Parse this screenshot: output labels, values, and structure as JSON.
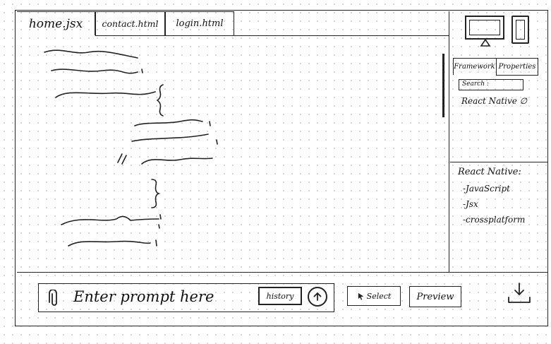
{
  "tabs": [
    {
      "label": "home.jsx"
    },
    {
      "label": "contact.html"
    },
    {
      "label": "login.html"
    }
  ],
  "side_panel": {
    "tabs": [
      {
        "label": "Framework"
      },
      {
        "label": "Properties"
      }
    ],
    "search_label": "Search :",
    "framework_item": "React Native ∅",
    "info": {
      "title": "React Native:",
      "items": [
        "-JavaScript",
        "-Jsx",
        "-crossplatform"
      ]
    }
  },
  "toolbar": {
    "prompt_placeholder": "Enter prompt here",
    "history_label": "history",
    "select_label": "Select",
    "preview_label": "Preview"
  },
  "icons": {
    "attach": "paperclip-icon",
    "send": "arrow-up-circle-icon",
    "select": "cursor-icon",
    "download": "download-icon",
    "desktop": "monitor-icon",
    "mobile": "phone-icon"
  }
}
